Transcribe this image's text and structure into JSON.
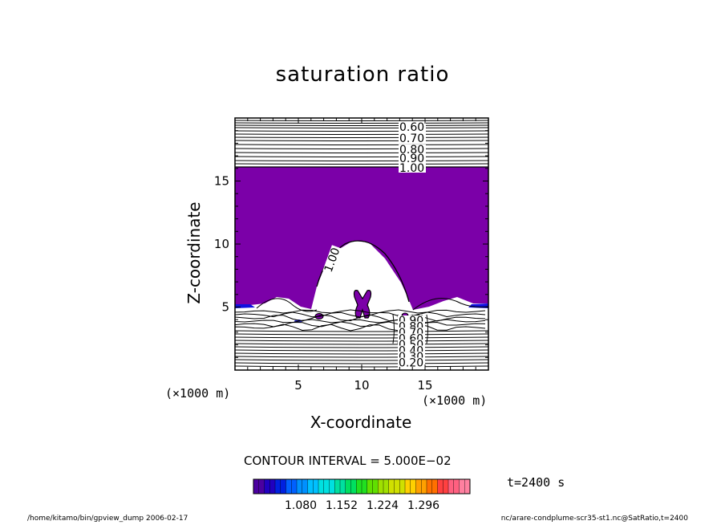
{
  "chart_data": {
    "type": "contour",
    "title": "saturation ratio",
    "xlabel": "X-coordinate",
    "ylabel": "Z-coordinate",
    "x_unit": "(×1000 m)",
    "x_unit_right": "(×1000 m)",
    "xlim": [
      0,
      20
    ],
    "ylim": [
      0,
      20
    ],
    "x_ticks": [
      "5",
      "10",
      "15"
    ],
    "y_ticks": [
      "5",
      "10",
      "15"
    ],
    "contour_labels_upper": [
      "0.60",
      "0.70",
      "0.80",
      "0.90",
      "1.00"
    ],
    "contour_label_plume": "1.00",
    "contour_labels_lower": [
      "0.90",
      "0.80",
      "0.70",
      "0.60",
      "0.50",
      "0.40",
      "0.30",
      "0.20"
    ],
    "contour_interval": "CONTOUR INTERVAL = 5.000E−02",
    "fill_color": "#7b00a8",
    "colorbar": {
      "ticks": [
        "1.080",
        "1.152",
        "1.224",
        "1.296"
      ],
      "colors": [
        "#4b00a0",
        "#2000c0",
        "#0020e0",
        "#0060ff",
        "#0090ff",
        "#00c0ff",
        "#00e0e0",
        "#00e0a0",
        "#00e060",
        "#20e020",
        "#60e000",
        "#a0e000",
        "#d0e000",
        "#ffd000",
        "#ffa000",
        "#ff7000",
        "#ff4040",
        "#ff6080",
        "#ff80a0"
      ]
    },
    "time": "t=2400 s",
    "footer_left": "/home/kitamo/bin/gpview_dump  2006-02-17",
    "footer_right": "nc/arare-condplume-scr35-st1.nc@SatRatio,t=2400"
  }
}
